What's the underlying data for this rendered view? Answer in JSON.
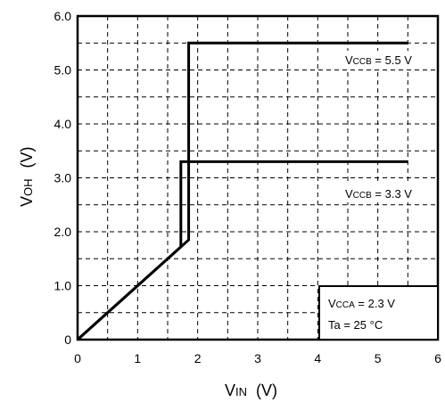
{
  "chart_data": {
    "type": "line",
    "xlabel": {
      "main": "V",
      "sub": "IN",
      "unit": "(V)"
    },
    "ylabel": {
      "main": "V",
      "sub": "OH",
      "unit": "(V)"
    },
    "xlim": [
      0,
      6
    ],
    "ylim": [
      0,
      6
    ],
    "x_ticks": [
      0,
      1,
      2,
      3,
      4,
      5,
      6
    ],
    "x_tick_labels": [
      "0",
      "1",
      "2",
      "3",
      "4",
      "5",
      "6"
    ],
    "y_ticks": [
      0,
      1,
      2,
      3,
      4,
      5,
      6
    ],
    "y_tick_labels": [
      "0",
      "1.0",
      "2.0",
      "3.0",
      "4.0",
      "5.0",
      "6.0"
    ],
    "grid": true,
    "minor_grid": "dashed, every 0.5",
    "series": [
      {
        "label": {
          "main": "V",
          "sub": "CCB",
          "rest": " = 5.5 V"
        },
        "color": "#000000",
        "x": [
          0,
          1.85,
          1.85,
          5.5
        ],
        "y": [
          0,
          1.85,
          5.5,
          5.5
        ]
      },
      {
        "label": {
          "main": "V",
          "sub": "CCB",
          "rest": " = 3.3 V"
        },
        "color": "#000000",
        "x": [
          0,
          1.72,
          1.72,
          5.5
        ],
        "y": [
          0,
          1.72,
          3.3,
          3.3
        ]
      }
    ],
    "conditions": [
      {
        "main": "V",
        "sub": "CCA",
        "rest": " = 2.3 V"
      },
      {
        "main": "Ta",
        "sub": "",
        "rest": " = 25 °C"
      }
    ]
  }
}
